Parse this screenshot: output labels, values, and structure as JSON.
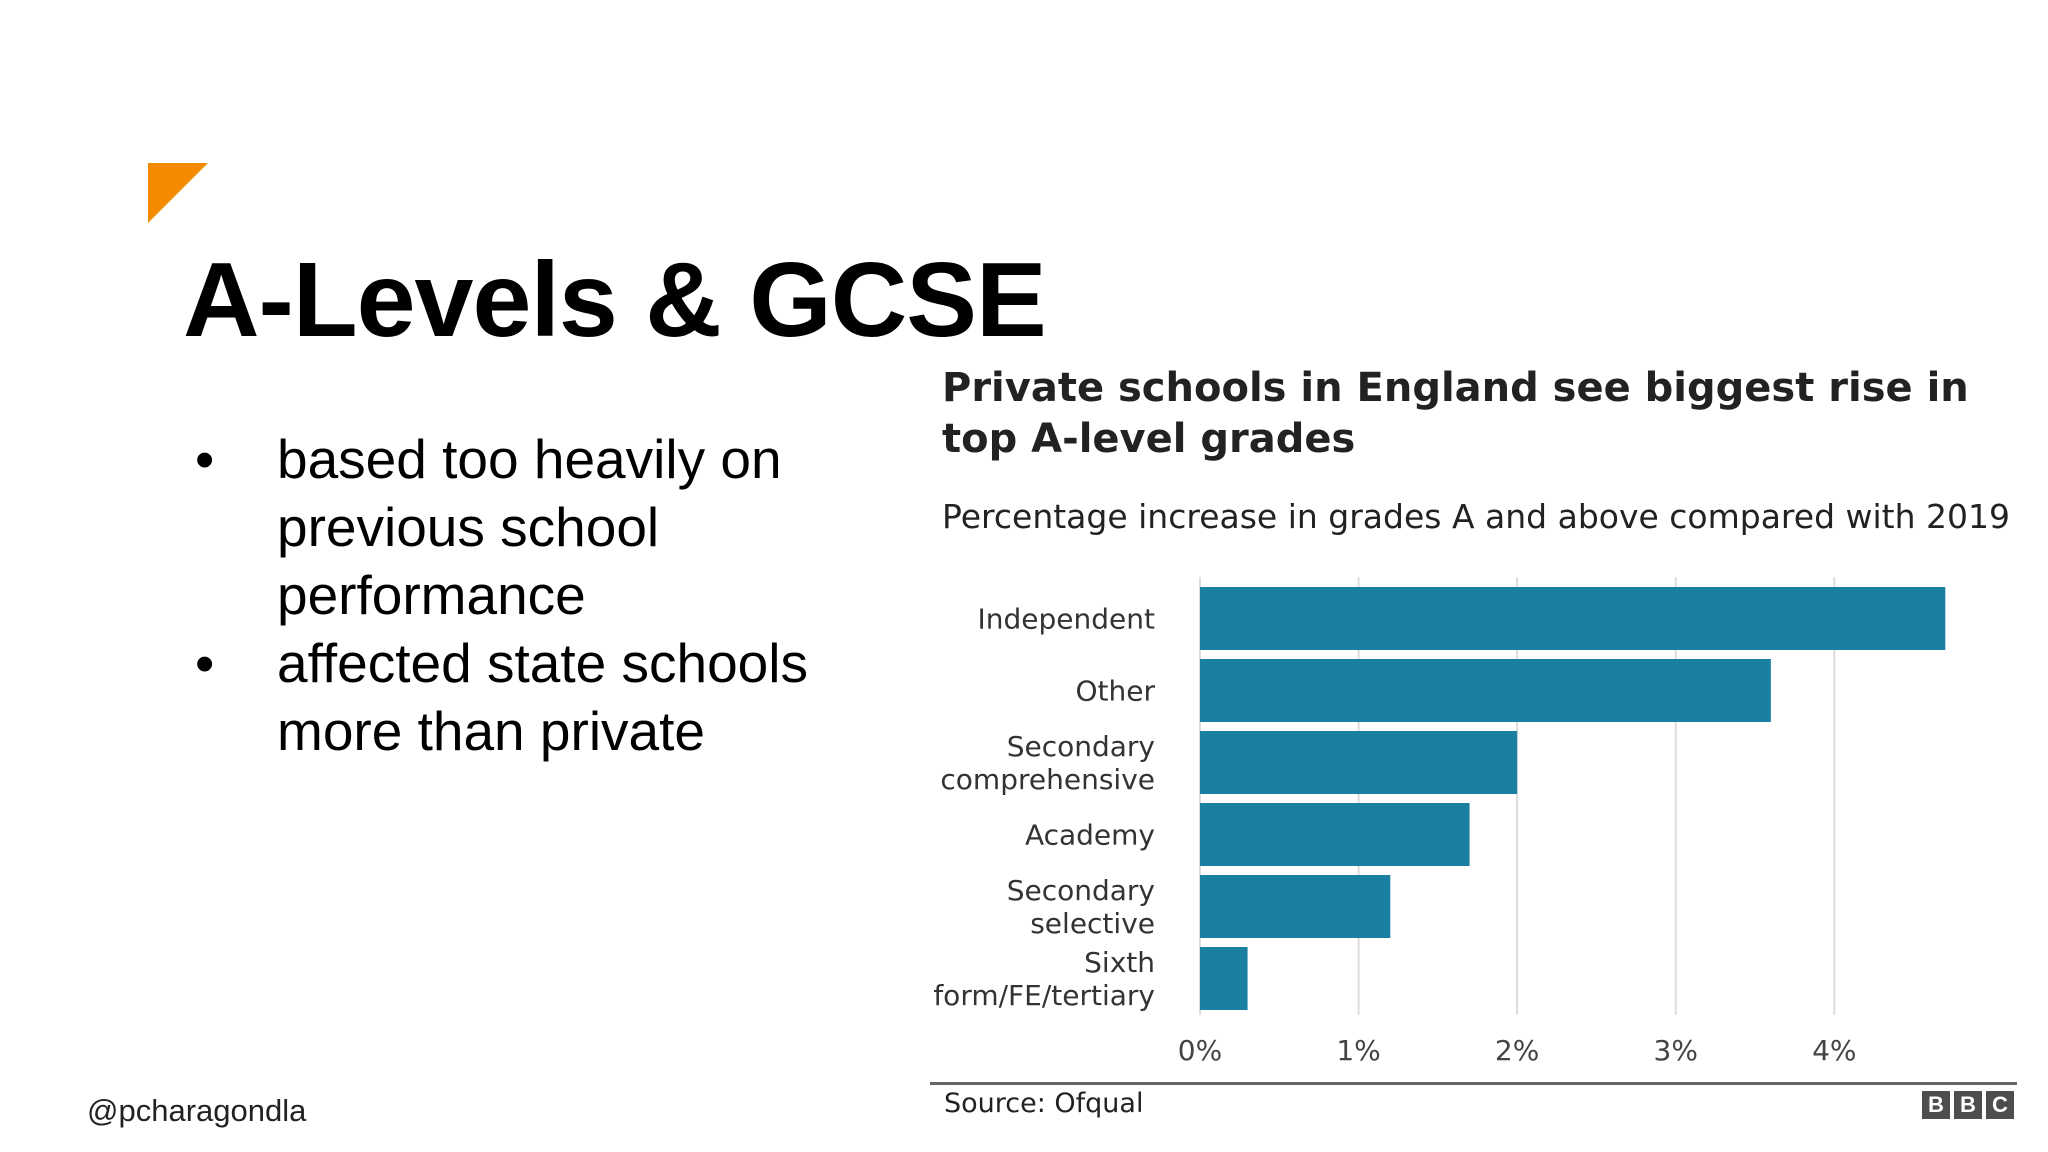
{
  "slide": {
    "title": "A-Levels & GCSE",
    "bullets": [
      "based too heavily on previous school performance",
      "affected state schools more than private"
    ],
    "handle": "@pcharagondla",
    "accent_color": "#f38b00"
  },
  "chart_data": {
    "type": "bar",
    "orientation": "horizontal",
    "title": "Private schools in England see biggest rise in top A-level grades",
    "subtitle": "Percentage increase in grades A and above compared with 2019",
    "categories": [
      [
        "Independent"
      ],
      [
        "Other"
      ],
      [
        "Secondary",
        "comprehensive"
      ],
      [
        "Academy"
      ],
      [
        "Secondary",
        "selective"
      ],
      [
        "Sixth",
        "form/FE/tertiary"
      ]
    ],
    "values": [
      4.7,
      3.6,
      2.0,
      1.7,
      1.2,
      0.3
    ],
    "xlim": [
      0,
      4.9
    ],
    "ticks": [
      0,
      1,
      2,
      3,
      4
    ],
    "tick_labels": [
      "0%",
      "1%",
      "2%",
      "3%",
      "4%"
    ],
    "grid": true,
    "bar_color": "#1a7fa0",
    "source": "Source: Ofqual",
    "logo_letters": [
      "B",
      "B",
      "C"
    ]
  }
}
